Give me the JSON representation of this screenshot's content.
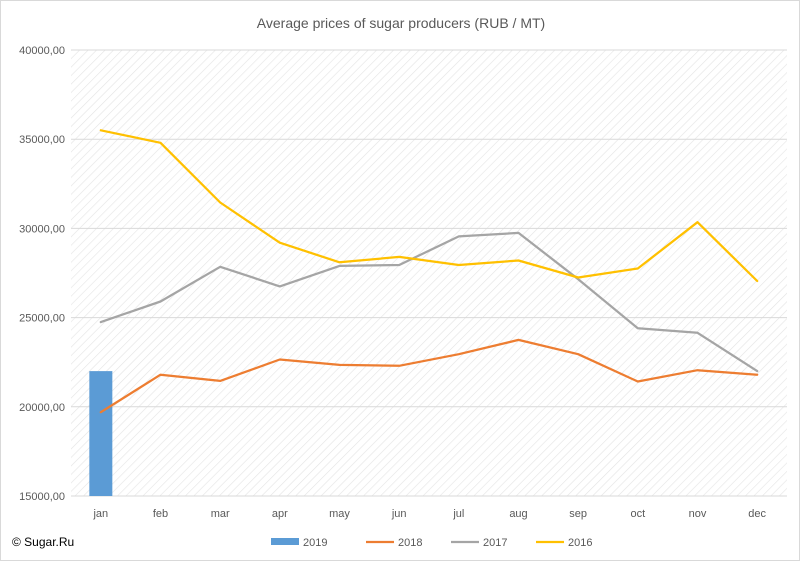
{
  "copyright": "© Sugar.Ru",
  "chart_data": {
    "type": "bar+line",
    "title": "Average prices of sugar producers (RUB / MT)",
    "xlabel": "",
    "ylabel": "",
    "categories": [
      "jan",
      "feb",
      "mar",
      "apr",
      "may",
      "jun",
      "jul",
      "aug",
      "sep",
      "oct",
      "nov",
      "dec"
    ],
    "ylim": [
      15000,
      40000
    ],
    "yticks": [
      15000,
      20000,
      25000,
      30000,
      35000,
      40000
    ],
    "ytick_labels": [
      "15000,00",
      "20000,00",
      "25000,00",
      "30000,00",
      "35000,00",
      "40000,00"
    ],
    "grid": true,
    "legend_position": "bottom",
    "series": [
      {
        "name": "2019",
        "type": "bar",
        "color": "#5b9bd5",
        "values": [
          22000,
          null,
          null,
          null,
          null,
          null,
          null,
          null,
          null,
          null,
          null,
          null
        ]
      },
      {
        "name": "2018",
        "type": "line",
        "color": "#ed7d31",
        "values": [
          19700,
          21800,
          21450,
          22650,
          22350,
          22300,
          22950,
          23750,
          22950,
          21420,
          22050,
          21800
        ]
      },
      {
        "name": "2017",
        "type": "line",
        "color": "#a5a5a5",
        "values": [
          24750,
          25900,
          27850,
          26750,
          27900,
          27950,
          29550,
          29750,
          27150,
          24400,
          24150,
          22000
        ]
      },
      {
        "name": "2016",
        "type": "line",
        "color": "#ffc000",
        "values": [
          35500,
          34800,
          31450,
          29200,
          28100,
          28400,
          27950,
          28200,
          27250,
          27750,
          30350,
          27050
        ]
      }
    ]
  }
}
